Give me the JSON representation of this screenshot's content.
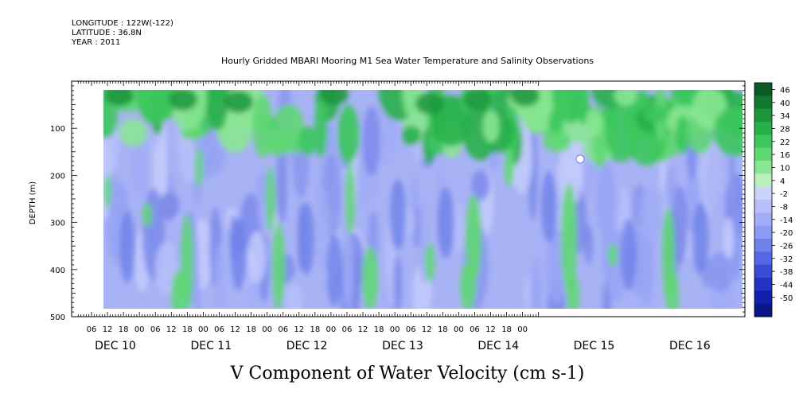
{
  "header": {
    "longitude": "LONGITUDE : 122W(-122)",
    "latitude": "LATITUDE : 36.8N",
    "year": "YEAR : 2011"
  },
  "chart_data": {
    "type": "heatmap",
    "title": "Hourly Gridded MBARI Mooring M1 Sea Water Temperature and Salinity Observations",
    "xlabel": "V Component of Water Velocity (cm s-1)",
    "ylabel": "DEPTH (m)",
    "ylim": [
      500,
      0
    ],
    "yticks": [
      100,
      200,
      300,
      400,
      500
    ],
    "x_hour_ticks": [
      "06",
      "12",
      "18",
      "00",
      "06",
      "12",
      "18",
      "00",
      "06",
      "12",
      "18",
      "00",
      "06",
      "12",
      "18",
      "00",
      "06",
      "12",
      "18",
      "00",
      "06",
      "12",
      "18",
      "00",
      "06",
      "12",
      "18",
      "00"
    ],
    "x_day_labels": [
      "DEC 10",
      "DEC 11",
      "DEC 12",
      "DEC 13",
      "DEC 14",
      "DEC 15",
      "DEC 16"
    ],
    "colorbar": {
      "levels": [
        "46",
        "40",
        "34",
        "28",
        "22",
        "16",
        "10",
        "4",
        "-2",
        "-8",
        "-14",
        "-20",
        "-26",
        "-32",
        "-38",
        "-44",
        "-50"
      ],
      "colors": [
        "#0b5a23",
        "#13782f",
        "#1b953b",
        "#27b04a",
        "#3cc65c",
        "#5fd773",
        "#8ae594",
        "#b9f0bc",
        "#cdd2fb",
        "#b7befb",
        "#a3aef8",
        "#8d9af3",
        "#7181ec",
        "#5667e4",
        "#3a4bd6",
        "#2233c4",
        "#1120a8",
        "#0a1686"
      ]
    },
    "features": {
      "surface_layer": "positive values (green) in upper ~100 m",
      "deep_layer": "negative values (blue) dominate below ~150 m",
      "green_columns": "positive streaks near DEC 10 ~12h, DEC 11 ~06h, DEC 14 ~06h, DEC 15 ~06h, DEC 16 ~06h"
    }
  }
}
